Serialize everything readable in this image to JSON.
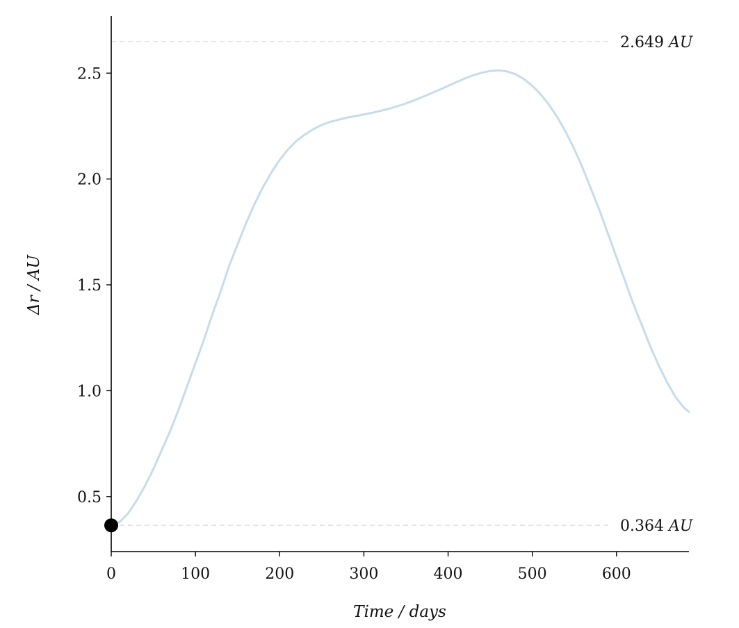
{
  "chart_data": {
    "type": "line",
    "title": "",
    "xlabel": "Time / days",
    "ylabel": "Δr / AU",
    "xlim": [
      0,
      686
    ],
    "ylim": [
      0.24,
      2.77
    ],
    "xticks": [
      0,
      100,
      200,
      300,
      400,
      500,
      600
    ],
    "xtick_labels": [
      "0",
      "100",
      "200",
      "300",
      "400",
      "500",
      "600"
    ],
    "yticks": [
      0.5,
      1.0,
      1.5,
      2.0,
      2.5
    ],
    "ytick_labels": [
      "0.5",
      "1.0",
      "1.5",
      "2.0",
      "2.5"
    ],
    "grid": false,
    "series": [
      {
        "color": "#c6dcec",
        "x": [
          0,
          10,
          20,
          30,
          40,
          50,
          60,
          70,
          80,
          90,
          100,
          110,
          120,
          130,
          140,
          150,
          160,
          170,
          180,
          190,
          200,
          210,
          220,
          230,
          240,
          250,
          260,
          270,
          280,
          290,
          300,
          310,
          320,
          330,
          340,
          350,
          360,
          370,
          380,
          390,
          400,
          410,
          420,
          430,
          440,
          450,
          460,
          470,
          480,
          490,
          500,
          510,
          520,
          530,
          540,
          550,
          560,
          570,
          580,
          590,
          600,
          610,
          620,
          630,
          640,
          650,
          660,
          670,
          680,
          686
        ],
        "y": [
          0.364,
          0.38,
          0.42,
          0.48,
          0.55,
          0.63,
          0.72,
          0.81,
          0.91,
          1.02,
          1.13,
          1.24,
          1.36,
          1.47,
          1.59,
          1.69,
          1.79,
          1.88,
          1.96,
          2.03,
          2.09,
          2.14,
          2.18,
          2.21,
          2.235,
          2.255,
          2.27,
          2.28,
          2.29,
          2.297,
          2.305,
          2.313,
          2.322,
          2.332,
          2.344,
          2.357,
          2.372,
          2.388,
          2.405,
          2.422,
          2.44,
          2.458,
          2.475,
          2.49,
          2.502,
          2.51,
          2.513,
          2.508,
          2.495,
          2.472,
          2.44,
          2.4,
          2.35,
          2.29,
          2.22,
          2.14,
          2.05,
          1.95,
          1.85,
          1.74,
          1.63,
          1.52,
          1.41,
          1.31,
          1.21,
          1.12,
          1.04,
          0.97,
          0.92,
          0.9
        ]
      }
    ],
    "reference_lines": [
      {
        "y": 2.649,
        "label_value": "2.649",
        "label_unit": "AU",
        "color": "#e3e3e3"
      },
      {
        "y": 0.364,
        "label_value": "0.364",
        "label_unit": "AU",
        "color": "#e3e3e3"
      }
    ],
    "marker": {
      "x": 0,
      "y": 0.364,
      "color": "#000000"
    }
  }
}
